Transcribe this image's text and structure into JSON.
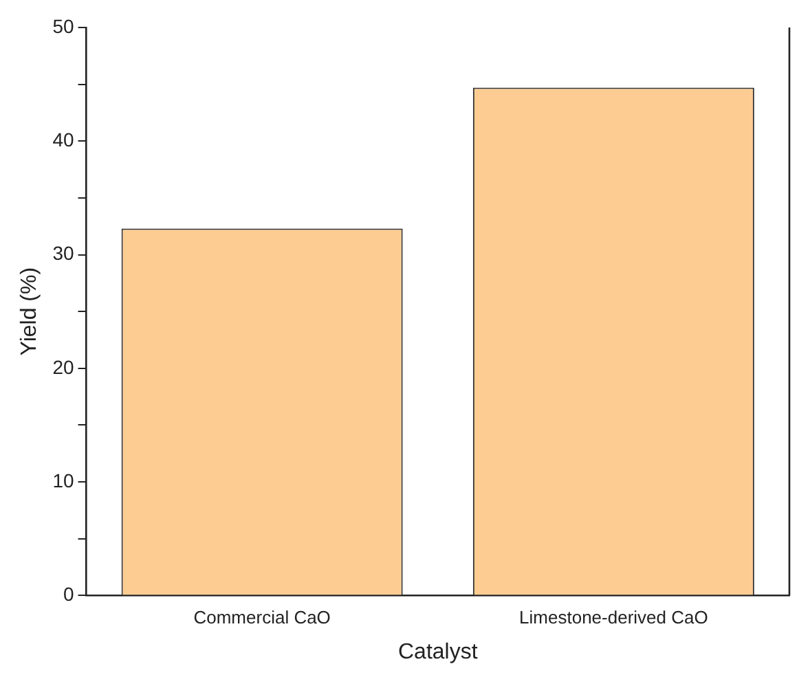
{
  "chart_data": {
    "type": "bar",
    "xlabel": "Catalyst",
    "ylabel": "Yield (%)",
    "categories": [
      "Commercial CaO",
      "Limestone-derived CaO"
    ],
    "values": [
      32.3,
      44.7
    ],
    "color": "#fdcc92",
    "ylim": [
      0,
      50
    ],
    "yticks": [
      0,
      {
        "value": 5,
        "label": null
      },
      10,
      {
        "value": 15,
        "label": null
      },
      20,
      {
        "value": 25,
        "label": null
      },
      30,
      {
        "value": 35,
        "label": null
      },
      40,
      {
        "value": 45,
        "label": null
      },
      50
    ],
    "grid": false,
    "legend": false
  }
}
